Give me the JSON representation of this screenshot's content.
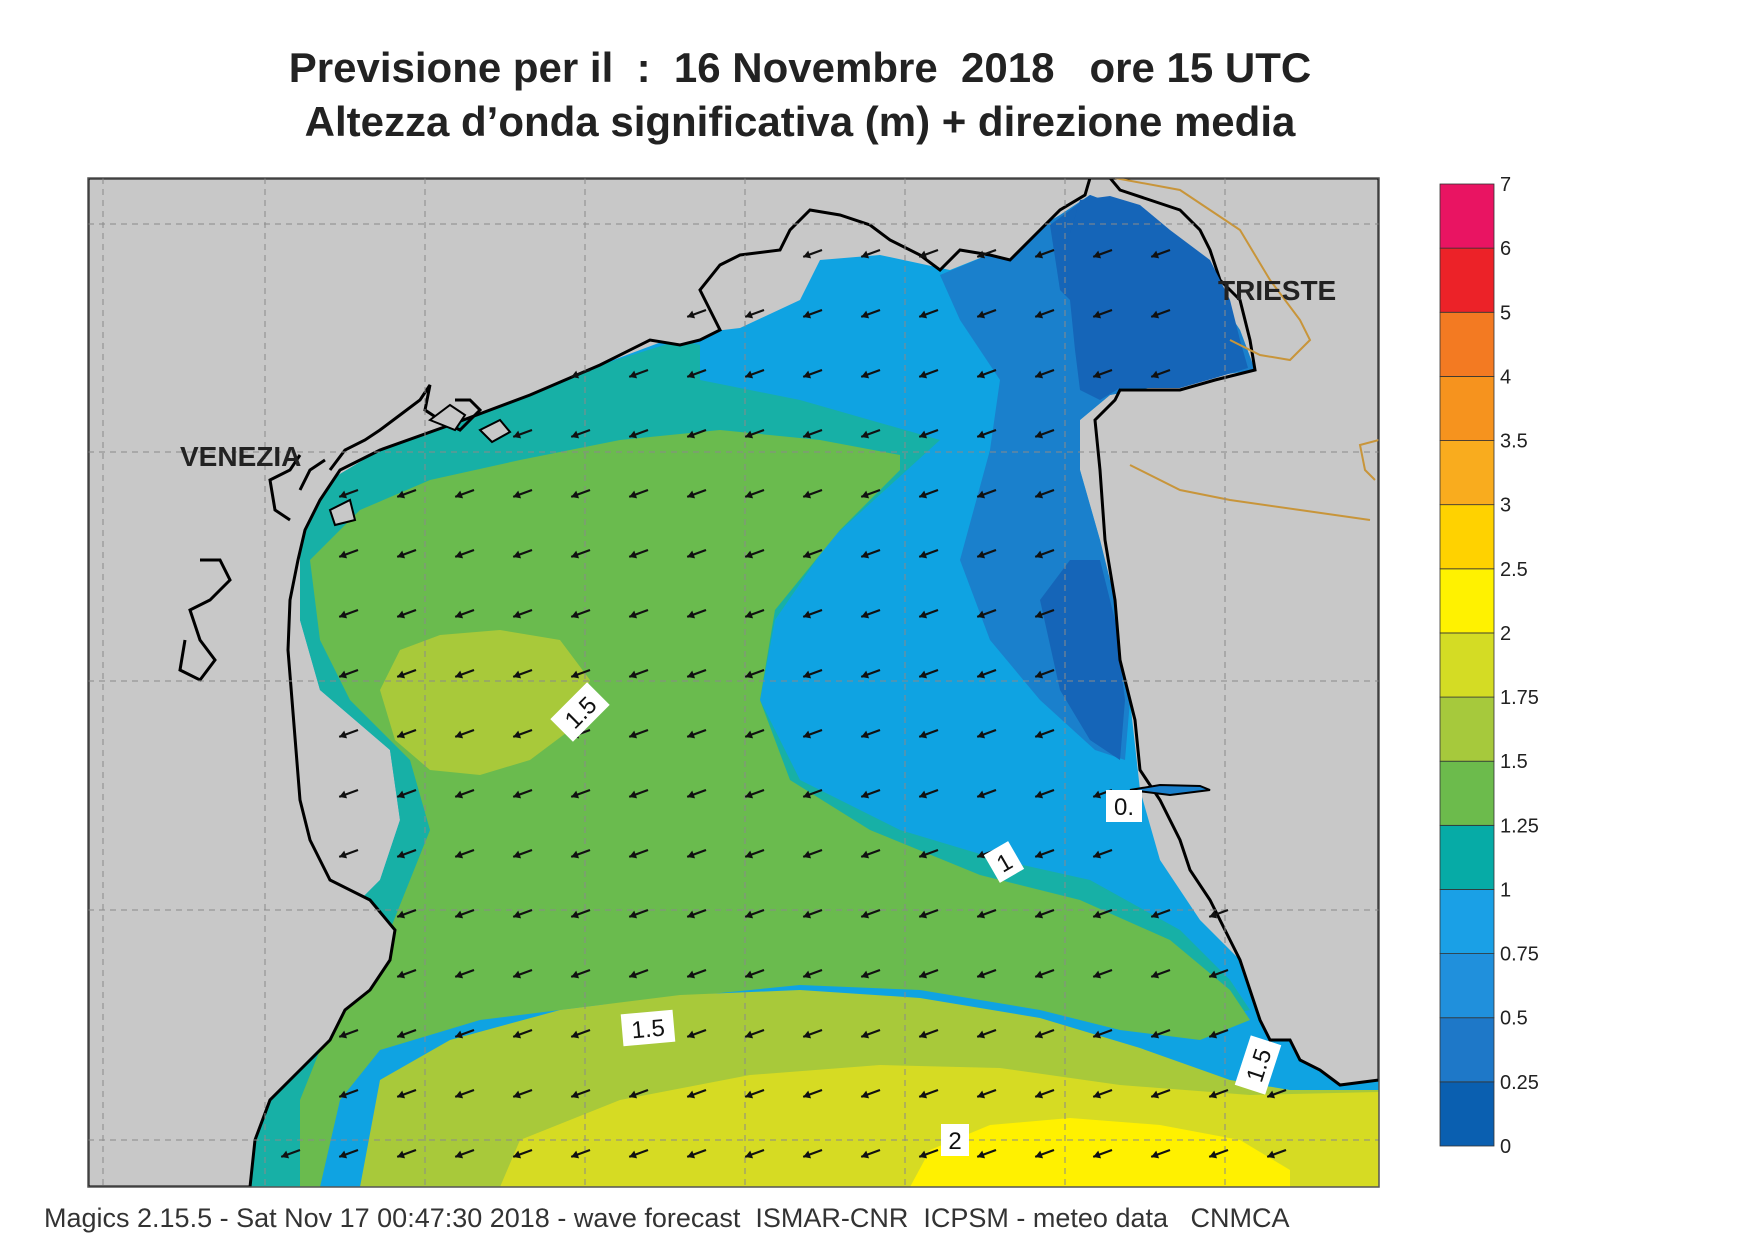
{
  "header": {
    "title_line1": "Previsione per il  :  16 Novembre  2018   ore 15 UTC",
    "title_line2": "Altezza d’onda significativa (m) + direzione media"
  },
  "map": {
    "cities": [
      {
        "name": "VENEZIA"
      },
      {
        "name": "TRIESTE"
      }
    ],
    "contour_labels": [
      {
        "text": "1.5",
        "id": "contour-label-1-5-west"
      },
      {
        "text": "0.",
        "id": "contour-label-0-5-east"
      },
      {
        "text": "1",
        "id": "contour-label-1"
      },
      {
        "text": "1.5",
        "id": "contour-label-1-5-south"
      },
      {
        "text": "1.5",
        "id": "contour-label-1-5-southeast"
      },
      {
        "text": "2",
        "id": "contour-label-2"
      }
    ],
    "arrow_direction": "towards west-southwest",
    "colors": {
      "land": "#c8c8c8",
      "sea_0_25": "#1565b8",
      "sea_0_5": "#1a80cc",
      "sea_0_75": "#2196e0",
      "sea_1": "#0fa3e2",
      "sea_1_25": "#17b0a6",
      "sea_1_5": "#6abb4e",
      "sea_1_75": "#a8c93a",
      "sea_2": "#d6db23",
      "sea_2_5": "#fff100",
      "border": "#c8953a"
    }
  },
  "colorbar": {
    "bins": [
      {
        "label": "0",
        "color": "#0a5fb0"
      },
      {
        "label": "0.25",
        "color": "#1e78c8"
      },
      {
        "label": "0.5",
        "color": "#2090dc"
      },
      {
        "label": "0.75",
        "color": "#1aa0e6"
      },
      {
        "label": "1",
        "color": "#06aba6"
      },
      {
        "label": "1.25",
        "color": "#6cbb4c"
      },
      {
        "label": "1.5",
        "color": "#a6c93c"
      },
      {
        "label": "1.75",
        "color": "#d4dc24"
      },
      {
        "label": "2",
        "color": "#fff200"
      },
      {
        "label": "2.5",
        "color": "#ffd200"
      },
      {
        "label": "3",
        "color": "#f9ac1e"
      },
      {
        "label": "3.5",
        "color": "#f6931e"
      },
      {
        "label": "4",
        "color": "#f37a22"
      },
      {
        "label": "5",
        "color": "#ec2228"
      },
      {
        "label": "6",
        "color": "#e91462"
      },
      {
        "label": "7",
        "color": ""
      }
    ]
  },
  "footer": {
    "text": "Magics 2.15.5 - Sat Nov 17 00:47:30 2018 - wave forecast  ISMAR-CNR  ICPSM - meteo data   CNMCA"
  }
}
